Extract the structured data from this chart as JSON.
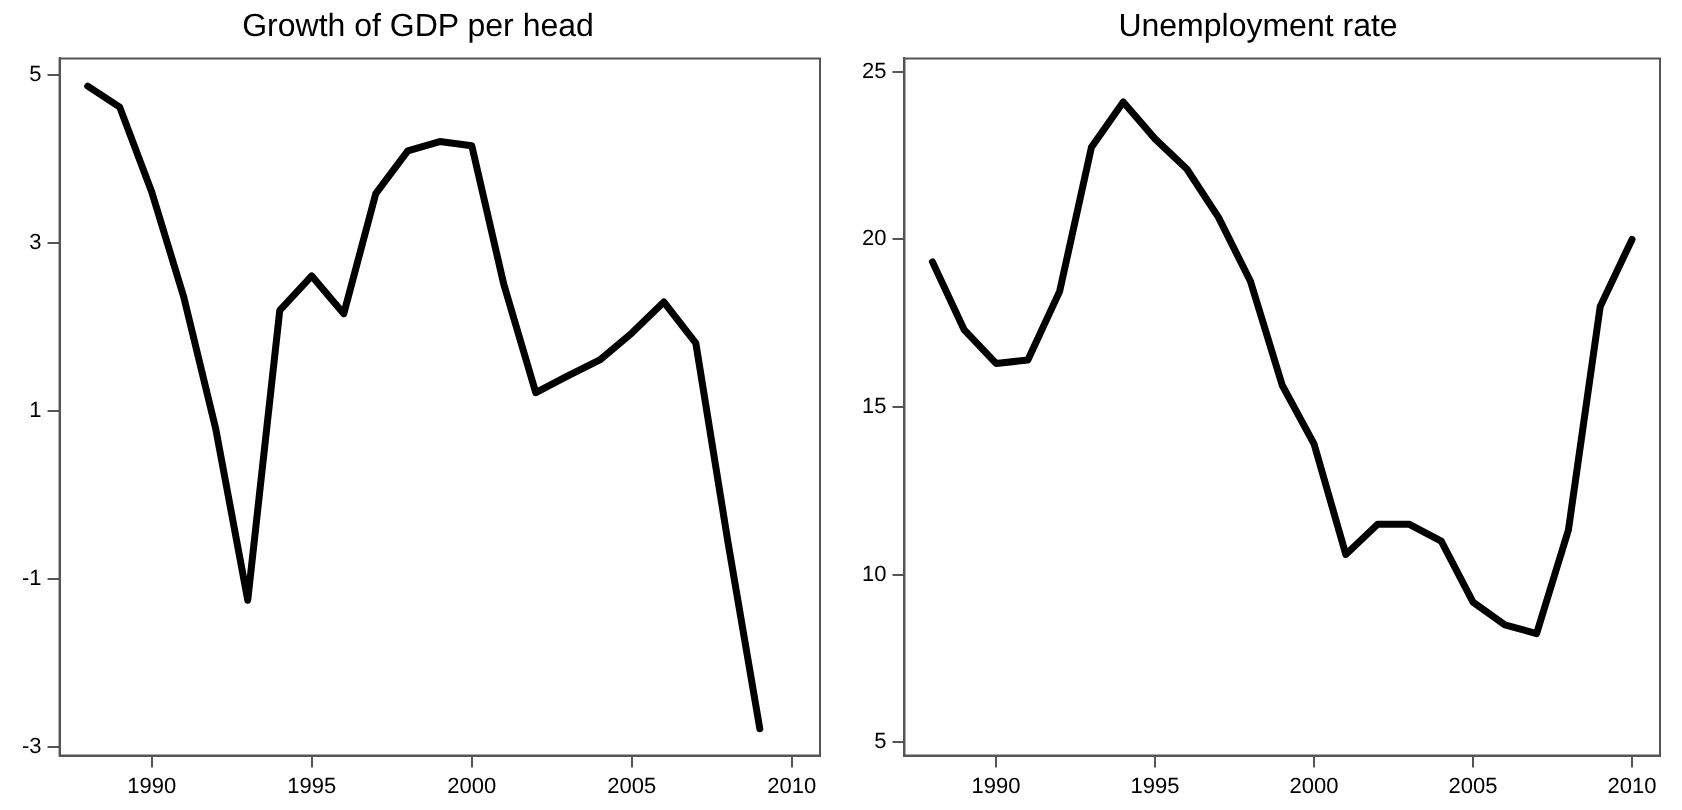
{
  "chart_data": [
    {
      "type": "line",
      "title": "Growth of GDP per head",
      "x": [
        1988,
        1989,
        1990,
        1991,
        1992,
        1993,
        1994,
        1995,
        1996,
        1997,
        1998,
        1999,
        2000,
        2001,
        2002,
        2003,
        2004,
        2005,
        2006,
        2007,
        2008,
        2009
      ],
      "series": [
        {
          "color": "#000000",
          "values": [
            4.87,
            4.62,
            3.61,
            2.36,
            0.79,
            -1.25,
            2.2,
            2.61,
            2.16,
            3.59,
            4.1,
            4.21,
            4.16,
            2.51,
            1.22,
            1.42,
            1.61,
            1.93,
            2.3,
            1.81,
            -0.55,
            -2.78
          ]
        }
      ],
      "xlim": [
        1987.12,
        2010.88
      ],
      "xticks": [
        1990,
        1995,
        2000,
        2005,
        2010
      ],
      "ylim": [
        -3.1,
        5.2
      ],
      "yticks": [
        -3,
        -1,
        1,
        3,
        5
      ],
      "grid": false,
      "legend": false,
      "marker": "none",
      "line_style": "solid"
    },
    {
      "type": "line",
      "title": "Unemployment rate",
      "x": [
        1988,
        1989,
        1990,
        1991,
        1992,
        1993,
        1994,
        1995,
        1996,
        1997,
        1998,
        1999,
        2000,
        2001,
        2002,
        2003,
        2004,
        2005,
        2006,
        2007,
        2008,
        2009,
        2010
      ],
      "series": [
        {
          "color": "#000000",
          "values": [
            19.33,
            17.3,
            16.3,
            16.4,
            18.45,
            22.75,
            24.1,
            23.0,
            22.1,
            20.65,
            18.75,
            15.65,
            13.9,
            10.6,
            11.5,
            11.5,
            11.0,
            9.18,
            8.5,
            8.24,
            11.33,
            18.0,
            20.0
          ]
        }
      ],
      "xlim": [
        1987.12,
        2010.88
      ],
      "xticks": [
        1990,
        1995,
        2000,
        2005,
        2010
      ],
      "ylim": [
        4.6,
        25.4
      ],
      "yticks": [
        5,
        10,
        15,
        20,
        25
      ],
      "grid": false,
      "legend": false,
      "marker": "none",
      "line_style": "solid"
    }
  ]
}
